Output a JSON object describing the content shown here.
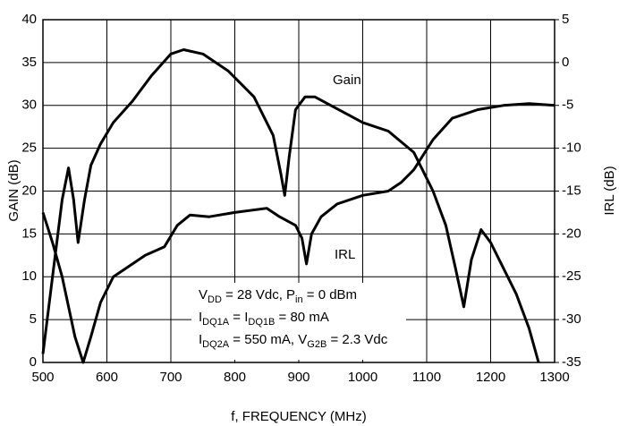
{
  "chart_data": {
    "type": "line",
    "x_label": "f, FREQUENCY (MHz)",
    "y_label": "GAIN (dB)",
    "y2_label": "IRL (dB)",
    "xlim": [
      500,
      1300
    ],
    "xticks": [
      500,
      600,
      700,
      800,
      900,
      1000,
      1100,
      1200,
      1300
    ],
    "ylim": [
      0,
      40
    ],
    "yticks": [
      0,
      5,
      10,
      15,
      20,
      25,
      30,
      35,
      40
    ],
    "y2lim": [
      -35,
      5
    ],
    "y2ticks": [
      5,
      0,
      -5,
      -10,
      -15,
      -20,
      -25,
      -30,
      -35
    ],
    "grid": true,
    "series": [
      {
        "name": "Gain",
        "color": "#000000",
        "x": [
          500,
          515,
          530,
          540,
          548,
          555,
          565,
          575,
          590,
          610,
          640,
          670,
          700,
          720,
          750,
          790,
          830,
          860,
          872,
          878,
          885,
          895,
          910,
          925,
          950,
          975,
          1000,
          1040,
          1080,
          1110,
          1130,
          1145,
          1158,
          1170,
          1185,
          1200,
          1220,
          1240,
          1260,
          1275
        ],
        "values": [
          1,
          10,
          19,
          22.7,
          19,
          14,
          19,
          23,
          25.5,
          28,
          30.5,
          33.5,
          36,
          36.5,
          36,
          34,
          31,
          26.5,
          22,
          19.5,
          24,
          29.5,
          31,
          31,
          30,
          29,
          28,
          27,
          24.5,
          20,
          16,
          11,
          6.5,
          12,
          15.5,
          14,
          11,
          8,
          4,
          0
        ]
      },
      {
        "name": "IRL",
        "color": "#000000",
        "axis": "y2",
        "x": [
          500,
          515,
          530,
          550,
          563,
          575,
          590,
          610,
          640,
          660,
          690,
          710,
          730,
          760,
          800,
          850,
          870,
          895,
          905,
          912,
          920,
          935,
          960,
          1000,
          1040,
          1060,
          1080,
          1110,
          1140,
          1180,
          1220,
          1260,
          1300
        ],
        "values": [
          -17.5,
          -21,
          -25,
          -32,
          -35,
          -32,
          -28,
          -25,
          -23.5,
          -22.5,
          -21.5,
          -19,
          -17.8,
          -18,
          -17.5,
          -17,
          -18,
          -19,
          -20.5,
          -23.5,
          -20,
          -18,
          -16.5,
          -15.5,
          -15,
          -14,
          -12.5,
          -9,
          -6.5,
          -5.5,
          -5,
          -4.8,
          -5
        ]
      }
    ],
    "annotations": [
      [
        "V",
        "DD",
        " = 28 Vdc, P",
        "in",
        " = 0 dBm"
      ],
      [
        "I",
        "DQ1A",
        " = I",
        "DQ1B",
        " = 80 mA"
      ],
      [
        "I",
        "DQ2A",
        " = 550 mA, V",
        "G2B",
        " = 2.3 Vdc"
      ]
    ]
  }
}
